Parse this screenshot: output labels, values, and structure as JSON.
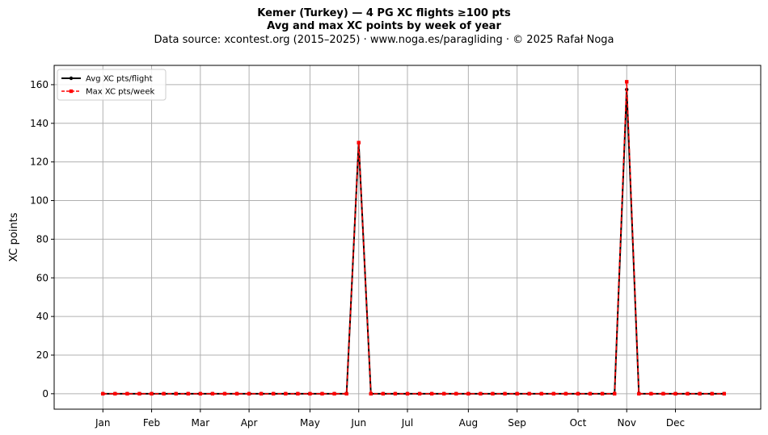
{
  "chart_data": {
    "type": "line",
    "title": "Kemer (Turkey)  —  4 PG XC flights ≥100 pts",
    "title_line2": "Avg and max XC points by week of year",
    "subtitle": "Data source: xcontest.org (2015–2025)  ·  www.noga.es/paragliding  ·  © 2025 Rafał Noga",
    "xlabel": "",
    "ylabel": "XC points",
    "ylim": [
      -8,
      170
    ],
    "yticks": [
      0,
      20,
      40,
      60,
      80,
      100,
      120,
      140,
      160
    ],
    "xlim": [
      -4,
      54
    ],
    "month_ticks": [
      {
        "label": "Jan",
        "week": 0
      },
      {
        "label": "Feb",
        "week": 4
      },
      {
        "label": "Mar",
        "week": 8
      },
      {
        "label": "Apr",
        "week": 12
      },
      {
        "label": "May",
        "week": 17
      },
      {
        "label": "Jun",
        "week": 21
      },
      {
        "label": "Jul",
        "week": 25
      },
      {
        "label": "Aug",
        "week": 30
      },
      {
        "label": "Sep",
        "week": 34
      },
      {
        "label": "Oct",
        "week": 39
      },
      {
        "label": "Nov",
        "week": 43
      },
      {
        "label": "Dec",
        "week": 47
      }
    ],
    "grid": true,
    "legend_position": "top-left",
    "x": [
      0,
      1,
      2,
      3,
      4,
      5,
      6,
      7,
      8,
      9,
      10,
      11,
      12,
      13,
      14,
      15,
      16,
      17,
      18,
      19,
      20,
      21,
      22,
      23,
      24,
      25,
      26,
      27,
      28,
      29,
      30,
      31,
      32,
      33,
      34,
      35,
      36,
      37,
      38,
      39,
      40,
      41,
      42,
      43,
      44,
      45,
      46,
      47,
      48,
      49,
      50,
      51
    ],
    "series": [
      {
        "name": "Avg XC pts/flight",
        "color": "#000000",
        "style": "solid",
        "marker": "circle",
        "values": [
          0,
          0,
          0,
          0,
          0,
          0,
          0,
          0,
          0,
          0,
          0,
          0,
          0,
          0,
          0,
          0,
          0,
          0,
          0,
          0,
          0,
          130,
          0,
          0,
          0,
          0,
          0,
          0,
          0,
          0,
          0,
          0,
          0,
          0,
          0,
          0,
          0,
          0,
          0,
          0,
          0,
          0,
          0,
          157.5,
          0,
          0,
          0,
          0,
          0,
          0,
          0,
          0
        ]
      },
      {
        "name": "Max XC pts/week",
        "color": "#ff0000",
        "style": "dashed",
        "marker": "square",
        "values": [
          0,
          0,
          0,
          0,
          0,
          0,
          0,
          0,
          0,
          0,
          0,
          0,
          0,
          0,
          0,
          0,
          0,
          0,
          0,
          0,
          0,
          130,
          0,
          0,
          0,
          0,
          0,
          0,
          0,
          0,
          0,
          0,
          0,
          0,
          0,
          0,
          0,
          0,
          0,
          0,
          0,
          0,
          0,
          161.5,
          0,
          0,
          0,
          0,
          0,
          0,
          0,
          0
        ]
      }
    ]
  }
}
